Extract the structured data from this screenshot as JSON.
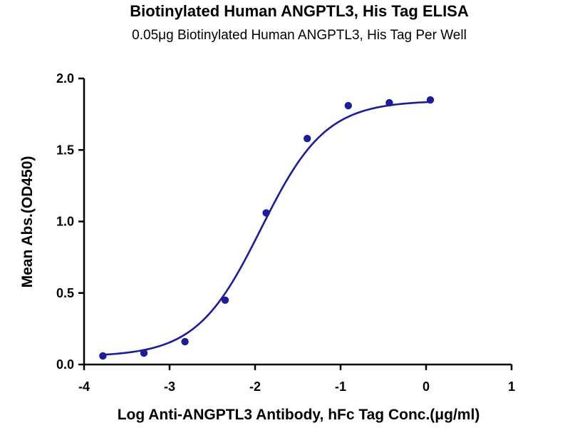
{
  "chart_data": {
    "type": "scatter",
    "title": "Biotinylated Human ANGPTL3, His Tag ELISA",
    "subtitle": "0.05μg Biotinylated Human ANGPTL3, His Tag Per Well",
    "xlabel": "Log  Anti-ANGPTL3 Antibody, hFc Tag Conc.(μg/ml)",
    "ylabel": "Mean Abs.(OD450)",
    "xlim": [
      -4,
      1
    ],
    "ylim": [
      0,
      2.0
    ],
    "xticks": [
      -4,
      -3,
      -2,
      -1,
      0,
      1
    ],
    "xtick_labels": [
      "-4",
      "-3",
      "-2",
      "-1",
      "0",
      "1"
    ],
    "yticks": [
      0,
      0.5,
      1.0,
      1.5,
      2.0
    ],
    "ytick_labels": [
      "0.0",
      "0.5",
      "1.0",
      "1.5",
      "2.0"
    ],
    "grid": false,
    "series": [
      {
        "color": "#1c1c9c",
        "x": [
          -3.78,
          -3.3,
          -2.82,
          -2.35,
          -1.87,
          -1.39,
          -0.91,
          -0.43,
          0.05
        ],
        "y": [
          0.06,
          0.08,
          0.16,
          0.45,
          1.06,
          1.58,
          1.81,
          1.83,
          1.85
        ],
        "fit": {
          "model": "4PL",
          "bottom": 0.055,
          "top": 1.845,
          "logEC50": -1.93,
          "hill": 1.15
        }
      }
    ]
  }
}
